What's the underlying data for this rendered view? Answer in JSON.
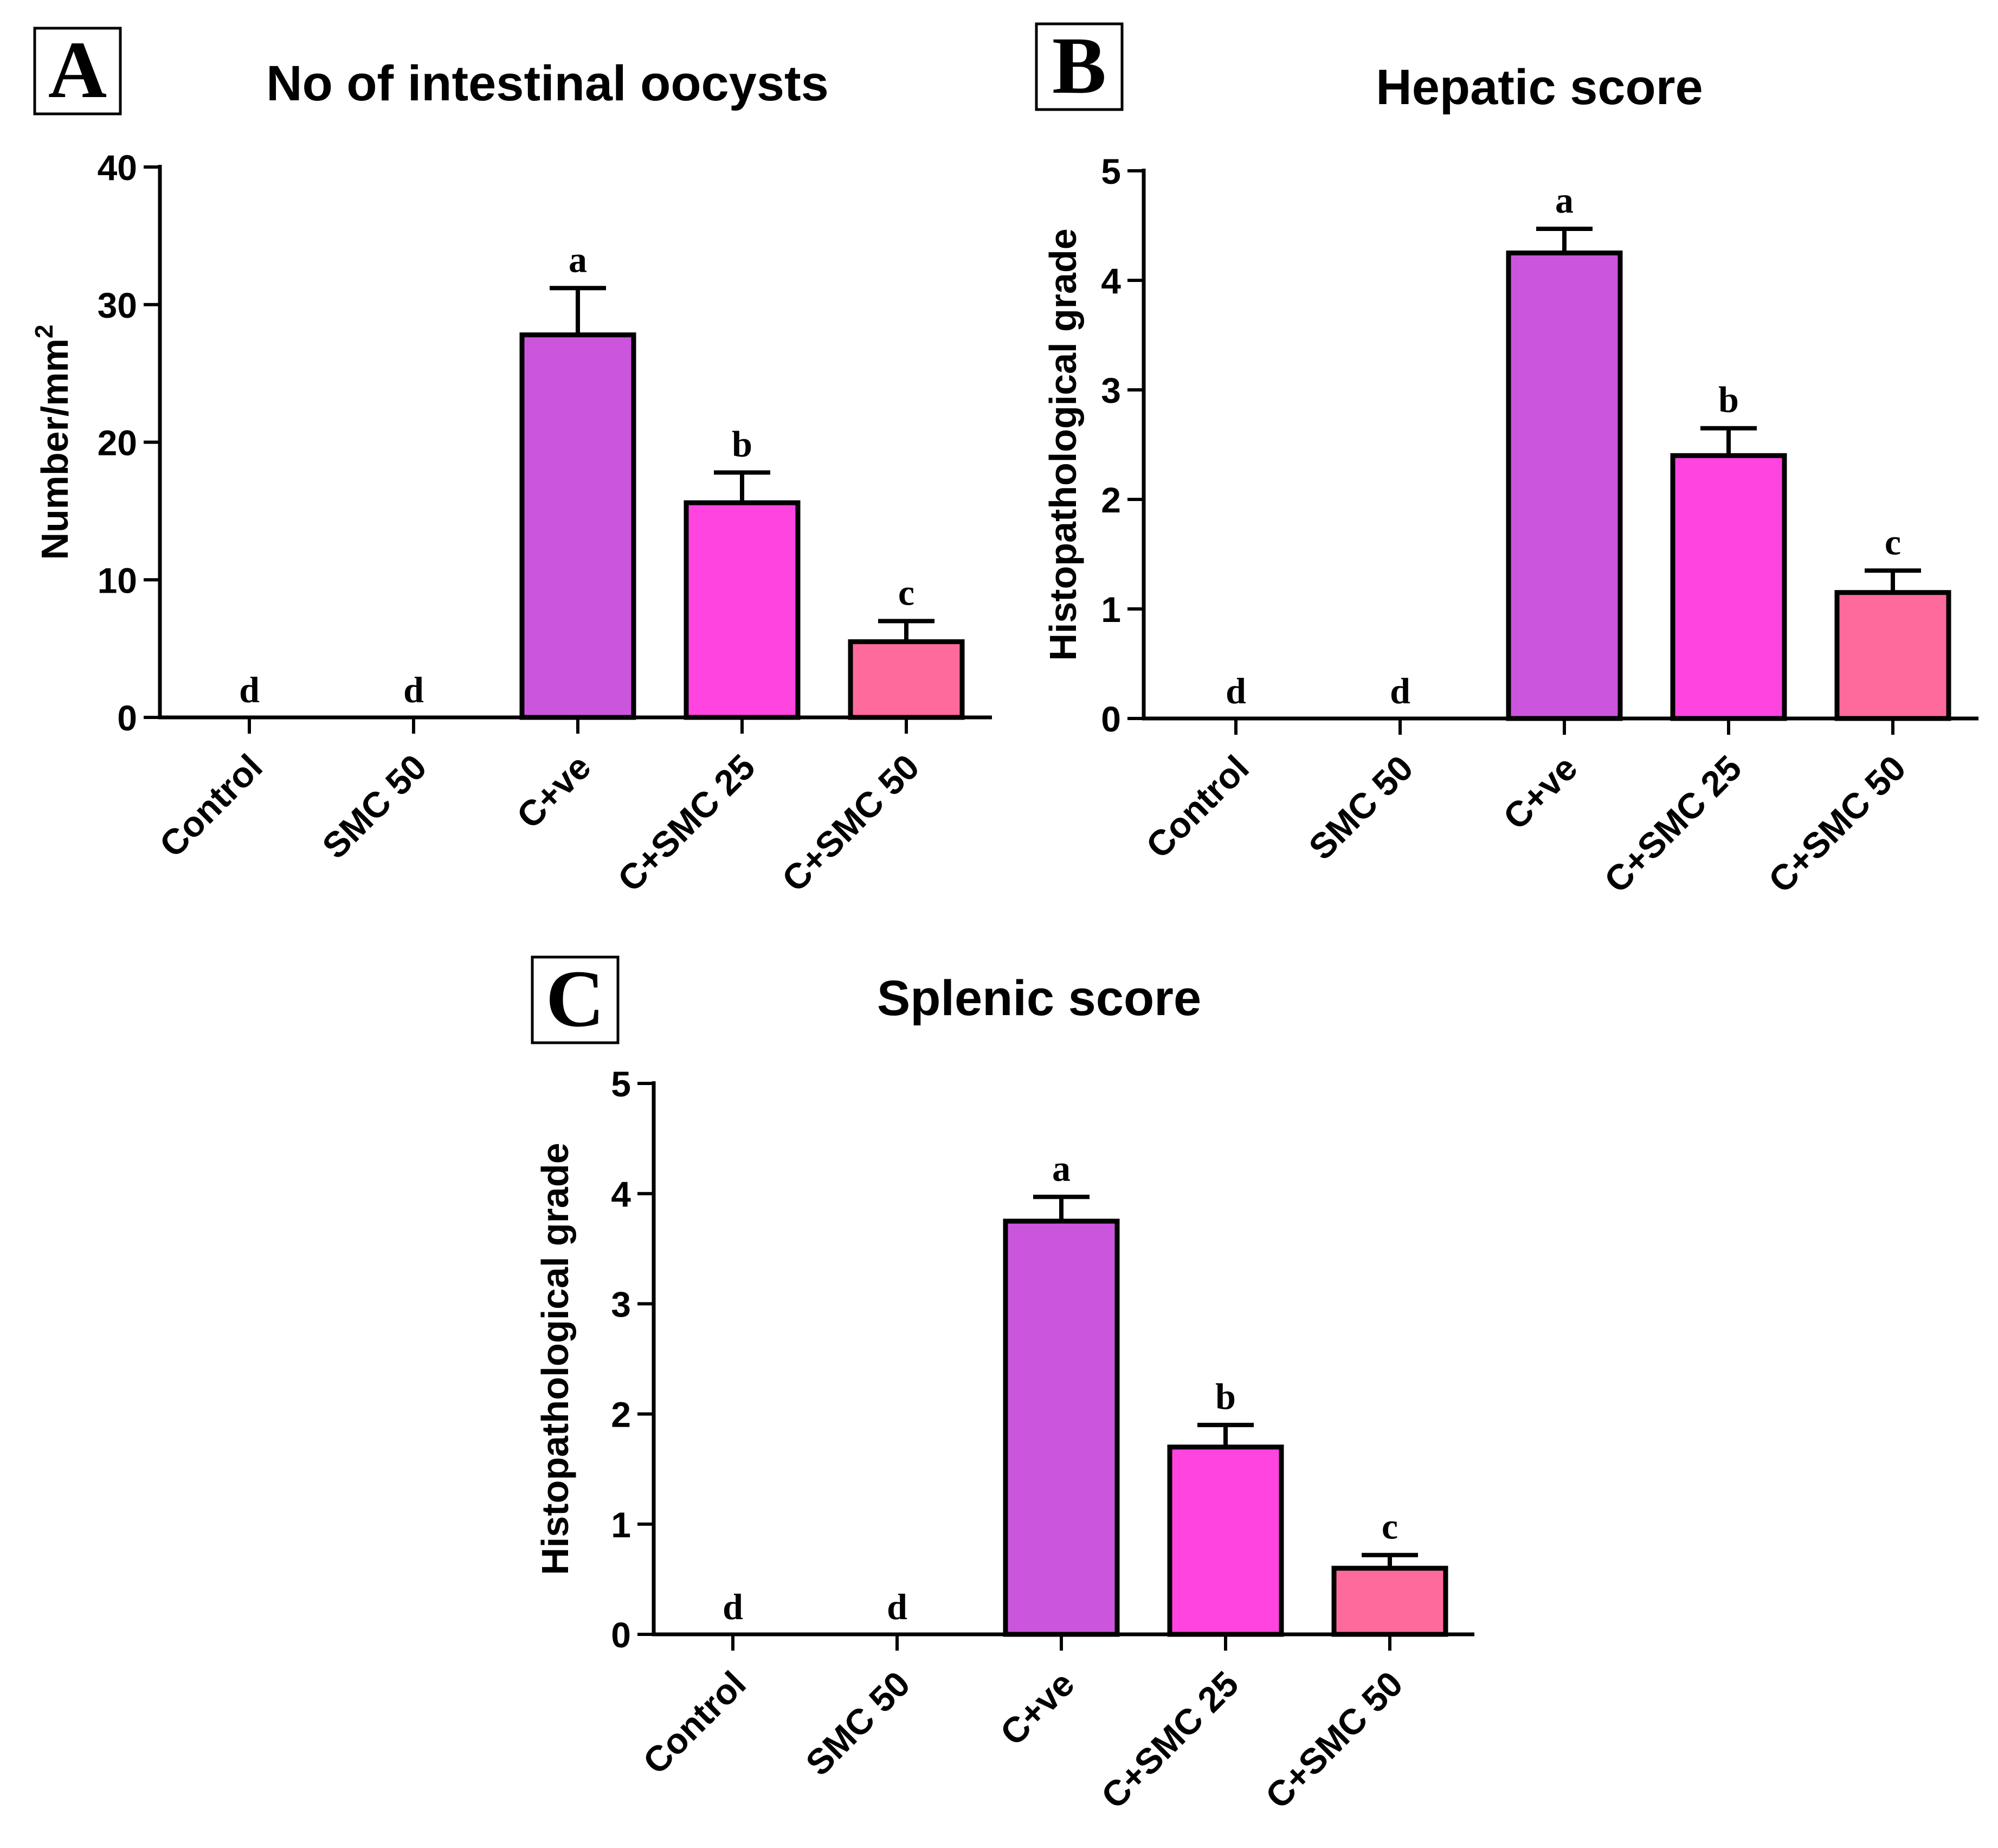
{
  "chart_data": [
    {
      "panel_label": "A",
      "type": "bar",
      "title": "No of intestinal oocysts",
      "xlabel": "",
      "ylabel": "Number/mm",
      "ylabel_superscript": "2",
      "ylim": [
        0,
        40
      ],
      "yticks": [
        "0",
        "10",
        "20",
        "30",
        "40"
      ],
      "categories": [
        "Control",
        "SMC 50",
        "C+ve",
        "C+SMC 25",
        "C+SMC 50"
      ],
      "values": [
        0,
        0,
        27.8,
        15.6,
        5.5
      ],
      "error": [
        0,
        0,
        3.4,
        2.2,
        1.5
      ],
      "letters": [
        "d",
        "d",
        "a",
        "b",
        "c"
      ],
      "colors": [
        "#cc55dd",
        "#cc55dd",
        "#cc55dd",
        "#ff44e0",
        "#ff6a9c"
      ]
    },
    {
      "panel_label": "B",
      "type": "bar",
      "title": "Hepatic score",
      "xlabel": "",
      "ylabel": "Histopathological grade",
      "ylim": [
        0,
        5
      ],
      "yticks": [
        "0",
        "1",
        "2",
        "3",
        "4",
        "5"
      ],
      "categories": [
        "Control",
        "SMC 50",
        "C+ve",
        "C+SMC 25",
        "C+SMC 50"
      ],
      "values": [
        0,
        0,
        4.25,
        2.4,
        1.15
      ],
      "error": [
        0,
        0,
        0.22,
        0.25,
        0.2
      ],
      "letters": [
        "d",
        "d",
        "a",
        "b",
        "c"
      ],
      "colors": [
        "#cc55dd",
        "#cc55dd",
        "#cc55dd",
        "#ff44e0",
        "#ff6a9c"
      ]
    },
    {
      "panel_label": "C",
      "type": "bar",
      "title": "Splenic score",
      "xlabel": "",
      "ylabel": "Histopathological grade",
      "ylim": [
        0,
        5
      ],
      "yticks": [
        "0",
        "1",
        "2",
        "3",
        "4",
        "5"
      ],
      "categories": [
        "Control",
        "SMC 50",
        "C+ve",
        "C+SMC 25",
        "C+SMC 50"
      ],
      "values": [
        0,
        0,
        3.75,
        1.7,
        0.6
      ],
      "error": [
        0,
        0,
        0.22,
        0.2,
        0.12
      ],
      "letters": [
        "d",
        "d",
        "a",
        "b",
        "c"
      ],
      "colors": [
        "#cc55dd",
        "#cc55dd",
        "#cc55dd",
        "#ff44e0",
        "#ff6a9c"
      ]
    }
  ]
}
